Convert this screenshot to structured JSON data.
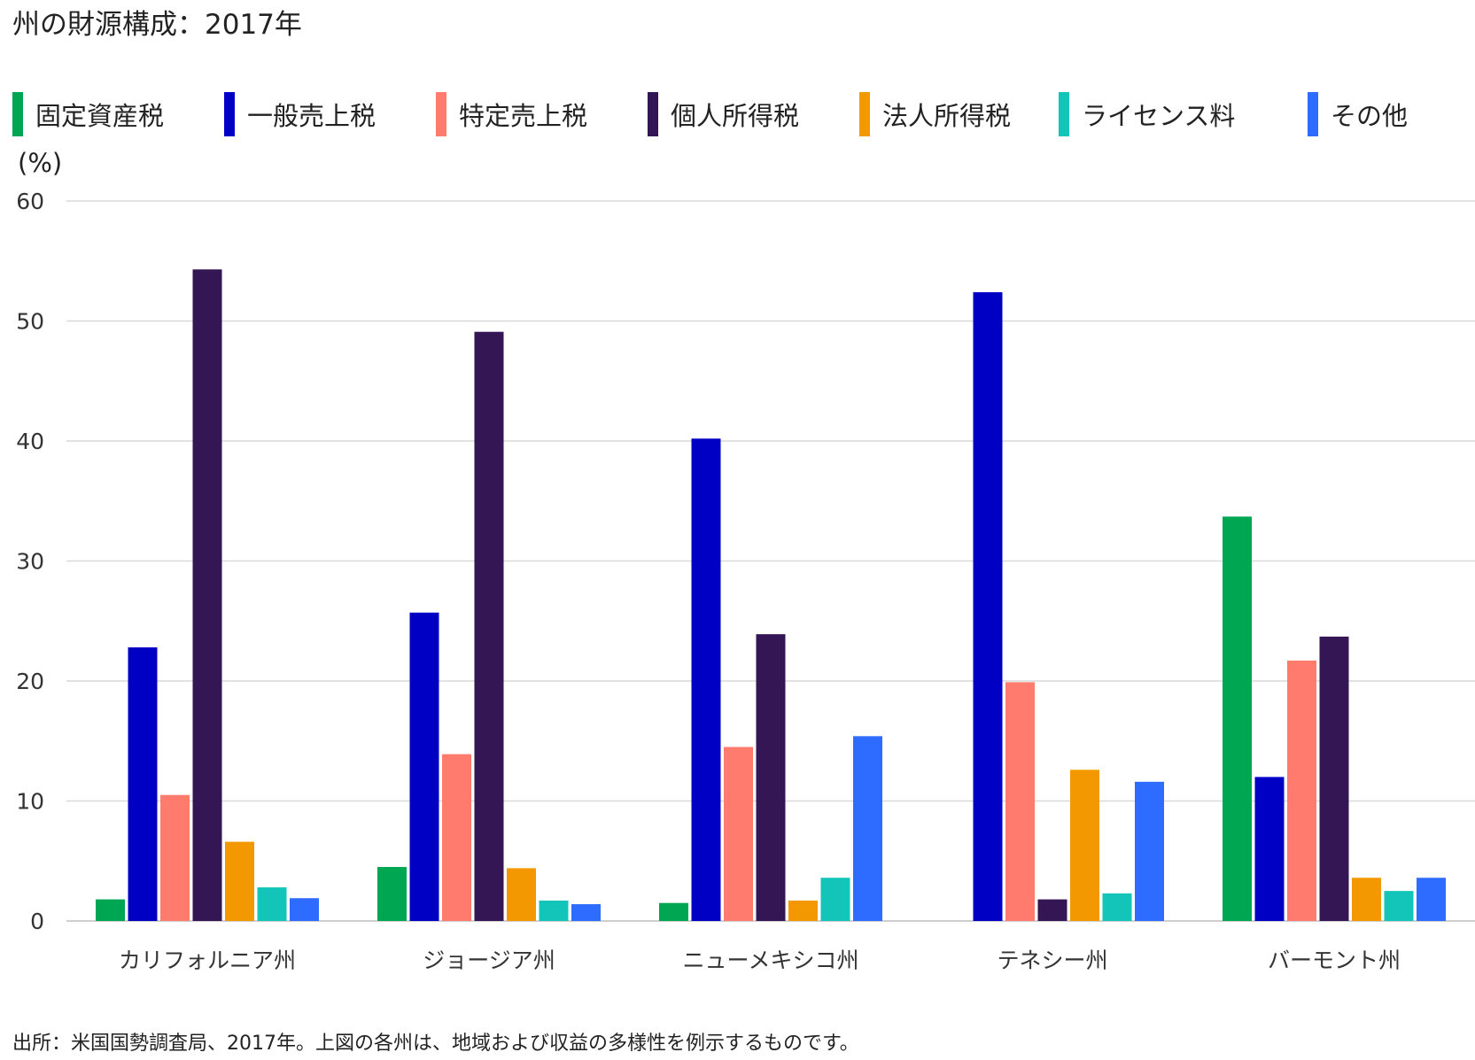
{
  "title": "州の財源構成：2017年",
  "source": "出所：米国国勢調査局、2017年。上図の各州は、地域および収益の多様性を例示するものです。",
  "chart_data": {
    "type": "bar",
    "title": "州の財源構成：2017年",
    "ylabel": "(%)",
    "xlabel": "",
    "ylim": [
      0,
      60
    ],
    "yticks": [
      0,
      10,
      20,
      30,
      40,
      50,
      60
    ],
    "grid": true,
    "legend_position": "top",
    "categories": [
      "カリフォルニア州",
      "ジョージア州",
      "ニューメキシコ州",
      "テネシー州",
      "バーモント州"
    ],
    "series": [
      {
        "name": "固定資産税",
        "color": "#00a651",
        "values": [
          1.8,
          4.5,
          1.5,
          0.0,
          33.7
        ]
      },
      {
        "name": "一般売上税",
        "color": "#0000c4",
        "values": [
          22.8,
          25.7,
          40.2,
          52.4,
          12.0
        ]
      },
      {
        "name": "特定売上税",
        "color": "#ff7b6e",
        "values": [
          10.5,
          13.9,
          14.5,
          19.9,
          21.7
        ]
      },
      {
        "name": "個人所得税",
        "color": "#351655",
        "values": [
          54.3,
          49.1,
          23.9,
          1.8,
          23.7
        ]
      },
      {
        "name": "法人所得税",
        "color": "#f39800",
        "values": [
          6.6,
          4.4,
          1.7,
          12.6,
          3.6
        ]
      },
      {
        "name": "ライセンス料",
        "color": "#13c4b8",
        "values": [
          2.8,
          1.7,
          3.6,
          2.3,
          2.5
        ]
      },
      {
        "name": "その他",
        "color": "#2e6bff",
        "values": [
          1.9,
          1.4,
          15.4,
          11.6,
          3.6
        ]
      }
    ]
  }
}
